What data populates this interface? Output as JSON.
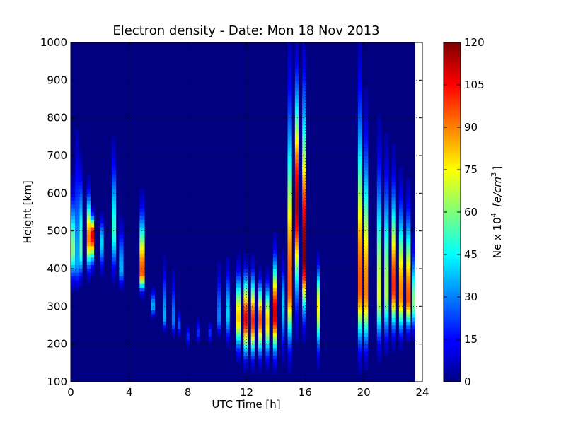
{
  "chart_data": {
    "type": "heatmap",
    "title": "Electron density - Date: Mon 18 Nov 2013",
    "xlabel": "UTC Time [h]",
    "ylabel": "Height [km]",
    "xlim": [
      0,
      24
    ],
    "ylim": [
      100,
      1000
    ],
    "x_ticks": [
      "0",
      "4",
      "8",
      "12",
      "16",
      "20",
      "24"
    ],
    "y_ticks": [
      "100",
      "200",
      "300",
      "400",
      "500",
      "600",
      "700",
      "800",
      "900",
      "1000"
    ],
    "grid": true,
    "colormap": "jet",
    "colorbar": {
      "label_prefix": "Ne x 10",
      "label_exp": "4",
      "label_units": "[e/cm",
      "label_units_exp": "3",
      "label_close": "]",
      "range": [
        0,
        120
      ],
      "ticks": [
        "0",
        "15",
        "30",
        "45",
        "60",
        "75",
        "90",
        "105",
        "120"
      ]
    },
    "data_extent_hours": [
      0,
      23.5
    ],
    "columns": [
      {
        "t": 0.0,
        "w": 0.3,
        "peak_h": 450,
        "peak_v": 60,
        "top_h": 650,
        "bottom_h": 330
      },
      {
        "t": 0.3,
        "w": 0.3,
        "peak_h": 420,
        "peak_v": 35,
        "top_h": 820,
        "bottom_h": 320
      },
      {
        "t": 0.6,
        "w": 0.2,
        "peak_h": 450,
        "peak_v": 55,
        "top_h": 720,
        "bottom_h": 340
      },
      {
        "t": 1.1,
        "w": 0.25,
        "peak_h": 480,
        "peak_v": 90,
        "top_h": 640,
        "bottom_h": 360
      },
      {
        "t": 1.35,
        "w": 0.25,
        "peak_h": 490,
        "peak_v": 110,
        "top_h": 560,
        "bottom_h": 380
      },
      {
        "t": 2.0,
        "w": 0.25,
        "peak_h": 470,
        "peak_v": 40,
        "top_h": 560,
        "bottom_h": 360
      },
      {
        "t": 2.8,
        "w": 0.3,
        "peak_h": 500,
        "peak_v": 50,
        "top_h": 760,
        "bottom_h": 340
      },
      {
        "t": 3.3,
        "w": 0.3,
        "peak_h": 400,
        "peak_v": 35,
        "top_h": 560,
        "bottom_h": 330
      },
      {
        "t": 4.7,
        "w": 0.35,
        "peak_h": 390,
        "peak_v": 95,
        "top_h": 600,
        "bottom_h": 320
      },
      {
        "t": 5.5,
        "w": 0.25,
        "peak_h": 300,
        "peak_v": 35,
        "top_h": 360,
        "bottom_h": 260
      },
      {
        "t": 6.3,
        "w": 0.2,
        "peak_h": 270,
        "peak_v": 35,
        "top_h": 460,
        "bottom_h": 220
      },
      {
        "t": 6.9,
        "w": 0.2,
        "peak_h": 260,
        "peak_v": 30,
        "top_h": 430,
        "bottom_h": 210
      },
      {
        "t": 7.3,
        "w": 0.2,
        "peak_h": 250,
        "peak_v": 25,
        "top_h": 300,
        "bottom_h": 210
      },
      {
        "t": 7.9,
        "w": 0.2,
        "peak_h": 220,
        "peak_v": 20,
        "top_h": 260,
        "bottom_h": 200
      },
      {
        "t": 8.6,
        "w": 0.2,
        "peak_h": 230,
        "peak_v": 20,
        "top_h": 280,
        "bottom_h": 200
      },
      {
        "t": 9.4,
        "w": 0.2,
        "peak_h": 230,
        "peak_v": 20,
        "top_h": 260,
        "bottom_h": 210
      },
      {
        "t": 10.0,
        "w": 0.25,
        "peak_h": 270,
        "peak_v": 30,
        "top_h": 450,
        "bottom_h": 200
      },
      {
        "t": 10.6,
        "w": 0.25,
        "peak_h": 280,
        "peak_v": 40,
        "top_h": 450,
        "bottom_h": 170
      },
      {
        "t": 11.3,
        "w": 0.3,
        "peak_h": 270,
        "peak_v": 80,
        "top_h": 430,
        "bottom_h": 140
      },
      {
        "t": 11.8,
        "w": 0.3,
        "peak_h": 265,
        "peak_v": 105,
        "top_h": 430,
        "bottom_h": 120
      },
      {
        "t": 12.3,
        "w": 0.25,
        "peak_h": 260,
        "peak_v": 100,
        "top_h": 430,
        "bottom_h": 120
      },
      {
        "t": 12.8,
        "w": 0.25,
        "peak_h": 265,
        "peak_v": 95,
        "top_h": 400,
        "bottom_h": 120
      },
      {
        "t": 13.3,
        "w": 0.25,
        "peak_h": 260,
        "peak_v": 80,
        "top_h": 400,
        "bottom_h": 120
      },
      {
        "t": 13.8,
        "w": 0.25,
        "peak_h": 280,
        "peak_v": 110,
        "top_h": 480,
        "bottom_h": 120
      },
      {
        "t": 14.4,
        "w": 0.2,
        "peak_h": 300,
        "peak_v": 40,
        "top_h": 460,
        "bottom_h": 120
      },
      {
        "t": 14.8,
        "w": 0.3,
        "peak_h": 350,
        "peak_v": 95,
        "top_h": 1000,
        "bottom_h": 120
      },
      {
        "t": 15.3,
        "w": 0.25,
        "peak_h": 570,
        "peak_v": 115,
        "top_h": 1000,
        "bottom_h": 200
      },
      {
        "t": 15.8,
        "w": 0.25,
        "peak_h": 430,
        "peak_v": 120,
        "top_h": 1000,
        "bottom_h": 200
      },
      {
        "t": 16.8,
        "w": 0.2,
        "peak_h": 300,
        "peak_v": 75,
        "top_h": 450,
        "bottom_h": 120
      },
      {
        "t": 19.6,
        "w": 0.3,
        "peak_h": 350,
        "peak_v": 95,
        "top_h": 1000,
        "bottom_h": 120
      },
      {
        "t": 20.0,
        "w": 0.3,
        "peak_h": 340,
        "peak_v": 90,
        "top_h": 850,
        "bottom_h": 120
      },
      {
        "t": 20.9,
        "w": 0.3,
        "peak_h": 330,
        "peak_v": 70,
        "top_h": 800,
        "bottom_h": 140
      },
      {
        "t": 21.4,
        "w": 0.3,
        "peak_h": 340,
        "peak_v": 65,
        "top_h": 760,
        "bottom_h": 150
      },
      {
        "t": 21.9,
        "w": 0.3,
        "peak_h": 350,
        "peak_v": 100,
        "top_h": 700,
        "bottom_h": 180
      },
      {
        "t": 22.4,
        "w": 0.3,
        "peak_h": 330,
        "peak_v": 90,
        "top_h": 650,
        "bottom_h": 180
      },
      {
        "t": 22.9,
        "w": 0.3,
        "peak_h": 320,
        "peak_v": 95,
        "top_h": 620,
        "bottom_h": 200
      },
      {
        "t": 23.3,
        "w": 0.2,
        "peak_h": 310,
        "peak_v": 60,
        "top_h": 500,
        "bottom_h": 200
      }
    ]
  }
}
